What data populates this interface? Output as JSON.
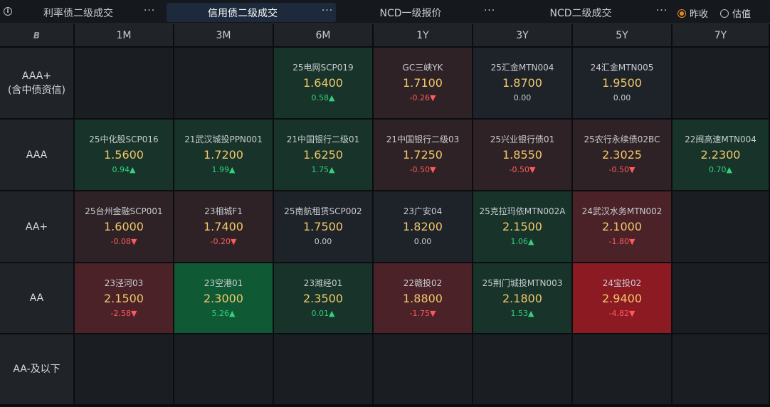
{
  "tabs": [
    {
      "label": "利率债二级成交",
      "more": "···"
    },
    {
      "label": "信用债二级成交",
      "more": "···"
    },
    {
      "label": "NCD一级报价",
      "more": "···"
    },
    {
      "label": "NCD二级成交",
      "more": "···"
    }
  ],
  "radios": [
    {
      "label": "昨收",
      "checked": true
    },
    {
      "label": "估值",
      "checked": false
    }
  ],
  "corner_icon": "B",
  "columns": [
    "1M",
    "3M",
    "6M",
    "1Y",
    "3Y",
    "5Y",
    "7Y"
  ],
  "rows": [
    {
      "label": "AAA+",
      "sublabel": "(含中债资信)",
      "cells": [
        null,
        null,
        {
          "name": "25电网SCP019",
          "value": "1.6400",
          "change": "0.58▲",
          "dir": "up"
        },
        {
          "name": "GC三峡YK",
          "value": "1.7100",
          "change": "-0.26▼",
          "dir": "down"
        },
        {
          "name": "25汇金MTN004",
          "value": "1.8700",
          "change": "0.00",
          "dir": "flat"
        },
        {
          "name": "24汇金MTN005",
          "value": "1.9500",
          "change": "0.00",
          "dir": "flat"
        },
        null
      ]
    },
    {
      "label": "AAA",
      "sublabel": "",
      "cells": [
        {
          "name": "25中化股SCP016",
          "value": "1.5600",
          "change": "0.94▲",
          "dir": "up"
        },
        {
          "name": "21武汉城投PPN001",
          "value": "1.7200",
          "change": "1.99▲",
          "dir": "up"
        },
        {
          "name": "21中国银行二级01",
          "value": "1.6250",
          "change": "1.75▲",
          "dir": "up"
        },
        {
          "name": "21中国银行二级03",
          "value": "1.7250",
          "change": "-0.50▼",
          "dir": "down"
        },
        {
          "name": "25兴业银行债01",
          "value": "1.8550",
          "change": "-0.50▼",
          "dir": "down"
        },
        {
          "name": "25农行永续债02BC",
          "value": "2.3025",
          "change": "-0.50▼",
          "dir": "down"
        },
        {
          "name": "22闽高速MTN004",
          "value": "2.2300",
          "change": "0.70▲",
          "dir": "up"
        }
      ]
    },
    {
      "label": "AA+",
      "sublabel": "",
      "cells": [
        {
          "name": "25台州金融SCP001",
          "value": "1.6000",
          "change": "-0.08▼",
          "dir": "down"
        },
        {
          "name": "23相城F1",
          "value": "1.7400",
          "change": "-0.20▼",
          "dir": "down"
        },
        {
          "name": "25南航租赁SCP002",
          "value": "1.7500",
          "change": "0.00",
          "dir": "flat"
        },
        {
          "name": "23广安04",
          "value": "1.8200",
          "change": "0.00",
          "dir": "flat"
        },
        {
          "name": "25克拉玛依MTN002A",
          "value": "2.1500",
          "change": "1.06▲",
          "dir": "up"
        },
        {
          "name": "24武汉水务MTN002",
          "value": "2.1000",
          "change": "-1.80▼",
          "dir": "down"
        },
        null
      ]
    },
    {
      "label": "AA",
      "sublabel": "",
      "cells": [
        {
          "name": "23泾河03",
          "value": "2.1500",
          "change": "-2.58▼",
          "dir": "down"
        },
        {
          "name": "23空港01",
          "value": "2.3000",
          "change": "5.26▲",
          "dir": "up"
        },
        {
          "name": "23潍经01",
          "value": "2.3500",
          "change": "0.01▲",
          "dir": "up"
        },
        {
          "name": "22赣投02",
          "value": "1.8800",
          "change": "-1.75▼",
          "dir": "down"
        },
        {
          "name": "25荆门城投MTN003",
          "value": "2.1800",
          "change": "1.53▲",
          "dir": "up"
        },
        {
          "name": "24宝投02",
          "value": "2.9400",
          "change": "-4.82▼",
          "dir": "down"
        },
        null
      ]
    },
    {
      "label": "AA-及以下",
      "sublabel": "",
      "cells": [
        null,
        null,
        null,
        null,
        null,
        null,
        null
      ]
    }
  ],
  "colors": {
    "empty": "#1a1e23",
    "flat": "#1e2329",
    "up_weak": "#17332a",
    "up_mid": "#174a30",
    "up_strong": "#0f5a35",
    "down_weak": "#2e2226",
    "down_mid": "#4a2228",
    "down_strong": "#8c1a22"
  }
}
